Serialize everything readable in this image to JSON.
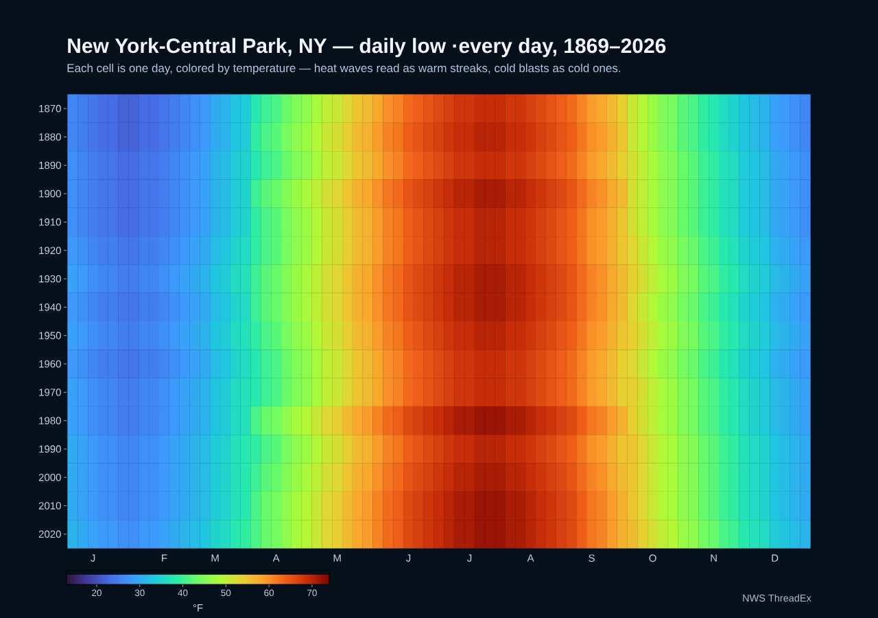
{
  "chart_data": {
    "type": "heatmap",
    "title": "New York-Central Park, NY — daily low ·every day, 1869–2026",
    "subtitle": "Each cell is one day, colored by temperature — heat waves read as warm streaks, cold blasts as cold ones.",
    "categories": [
      null,
      null,
      "J",
      null,
      null,
      null,
      null,
      null,
      null,
      "F",
      null,
      null,
      null,
      null,
      "M",
      null,
      null,
      null,
      null,
      null,
      "A",
      null,
      null,
      null,
      null,
      null,
      "M",
      null,
      null,
      null,
      null,
      null,
      null,
      "J",
      null,
      null,
      null,
      null,
      null,
      "J",
      null,
      null,
      null,
      null,
      null,
      "A",
      null,
      null,
      null,
      null,
      null,
      "S",
      null,
      null,
      null,
      null,
      null,
      "O",
      null,
      null,
      null,
      null,
      null,
      "N",
      null,
      null,
      null,
      null,
      null,
      "D",
      null,
      null,
      null
    ],
    "y_categories": [
      "1870",
      "1880",
      "1890",
      "1900",
      "1910",
      "1920",
      "1930",
      "1940",
      "1950",
      "1960",
      "1970",
      "1980",
      "1990",
      "2000",
      "2010",
      "2020"
    ],
    "cells": [
      [
        26,
        25,
        24,
        23,
        23,
        22,
        22,
        23,
        23,
        24,
        25,
        26,
        27,
        28,
        30,
        31,
        33,
        34,
        38,
        40,
        41,
        43,
        45,
        46,
        48,
        50,
        51,
        53,
        55,
        56,
        58,
        60,
        61,
        63,
        64,
        65,
        66,
        67,
        68,
        68,
        69,
        69,
        69,
        68,
        68,
        67,
        66,
        65,
        64,
        63,
        61,
        59,
        58,
        56,
        54,
        51,
        49,
        47,
        45,
        44,
        42,
        41,
        39,
        38,
        36,
        35,
        33,
        32,
        31,
        29,
        28,
        27,
        26
      ],
      [
        26,
        25,
        24,
        23,
        23,
        22,
        22,
        23,
        23,
        24,
        25,
        26,
        27,
        28,
        30,
        31,
        33,
        34,
        39,
        41,
        42,
        44,
        46,
        47,
        49,
        51,
        52,
        54,
        56,
        57,
        59,
        61,
        62,
        64,
        65,
        66,
        67,
        68,
        69,
        69,
        70,
        70,
        70,
        69,
        69,
        68,
        67,
        66,
        65,
        64,
        62,
        60,
        59,
        57,
        55,
        51,
        49,
        47,
        45,
        44,
        42,
        41,
        39,
        38,
        36,
        35,
        33,
        32,
        31,
        29,
        28,
        27,
        26
      ],
      [
        27,
        26,
        25,
        24,
        24,
        23,
        23,
        24,
        24,
        25,
        26,
        27,
        28,
        29,
        31,
        32,
        34,
        35,
        38,
        40,
        41,
        43,
        45,
        46,
        48,
        50,
        51,
        53,
        55,
        56,
        58,
        60,
        61,
        63,
        64,
        65,
        66,
        67,
        68,
        68,
        69,
        69,
        69,
        68,
        68,
        67,
        66,
        65,
        64,
        63,
        61,
        59,
        58,
        56,
        54,
        52,
        50,
        48,
        46,
        45,
        43,
        42,
        40,
        39,
        37,
        36,
        34,
        33,
        32,
        30,
        29,
        28,
        27
      ],
      [
        27,
        26,
        25,
        24,
        24,
        23,
        23,
        24,
        24,
        25,
        26,
        27,
        28,
        29,
        31,
        32,
        34,
        35,
        40,
        42,
        43,
        45,
        47,
        48,
        50,
        52,
        53,
        55,
        57,
        58,
        60,
        62,
        63,
        65,
        66,
        67,
        68,
        69,
        70,
        70,
        71,
        71,
        71,
        70,
        70,
        69,
        68,
        67,
        66,
        65,
        63,
        61,
        60,
        58,
        56,
        52,
        50,
        48,
        46,
        45,
        43,
        42,
        40,
        39,
        37,
        36,
        34,
        33,
        32,
        30,
        29,
        28,
        27
      ],
      [
        27,
        26,
        25,
        24,
        24,
        23,
        23,
        24,
        24,
        25,
        26,
        27,
        28,
        29,
        31,
        32,
        34,
        35,
        39,
        41,
        42,
        44,
        46,
        47,
        49,
        51,
        52,
        54,
        56,
        57,
        59,
        61,
        62,
        64,
        65,
        66,
        67,
        68,
        69,
        69,
        70,
        70,
        70,
        69,
        69,
        68,
        67,
        66,
        65,
        64,
        62,
        60,
        59,
        57,
        55,
        52,
        50,
        48,
        46,
        45,
        43,
        42,
        40,
        39,
        37,
        36,
        34,
        33,
        32,
        30,
        29,
        28,
        27
      ],
      [
        28,
        27,
        26,
        25,
        25,
        24,
        24,
        25,
        25,
        26,
        27,
        28,
        29,
        30,
        32,
        33,
        35,
        36,
        39,
        41,
        42,
        44,
        46,
        47,
        49,
        51,
        52,
        54,
        56,
        57,
        59,
        61,
        62,
        64,
        65,
        66,
        67,
        68,
        69,
        69,
        70,
        70,
        70,
        69,
        69,
        68,
        67,
        66,
        65,
        64,
        62,
        60,
        59,
        57,
        55,
        53,
        51,
        49,
        47,
        46,
        44,
        43,
        41,
        40,
        38,
        37,
        35,
        34,
        33,
        31,
        30,
        29,
        28
      ],
      [
        29,
        28,
        27,
        26,
        26,
        25,
        25,
        26,
        26,
        27,
        28,
        29,
        30,
        31,
        33,
        34,
        36,
        37,
        40,
        42,
        43,
        45,
        47,
        48,
        50,
        52,
        53,
        55,
        57,
        58,
        60,
        62,
        63,
        65,
        66,
        67,
        68,
        69,
        70,
        70,
        71,
        71,
        71,
        70,
        70,
        69,
        68,
        67,
        66,
        65,
        63,
        61,
        60,
        58,
        56,
        54,
        52,
        50,
        48,
        47,
        45,
        44,
        42,
        41,
        39,
        38,
        36,
        35,
        34,
        32,
        31,
        30,
        29
      ],
      [
        28,
        27,
        26,
        25,
        25,
        24,
        24,
        25,
        25,
        26,
        27,
        28,
        29,
        30,
        32,
        33,
        35,
        36,
        40,
        42,
        43,
        45,
        47,
        48,
        50,
        52,
        53,
        55,
        57,
        58,
        60,
        62,
        63,
        65,
        66,
        67,
        68,
        69,
        70,
        70,
        71,
        71,
        71,
        70,
        70,
        69,
        68,
        67,
        66,
        65,
        63,
        61,
        60,
        58,
        56,
        53,
        51,
        49,
        47,
        46,
        44,
        43,
        41,
        40,
        38,
        37,
        35,
        34,
        33,
        31,
        30,
        29,
        28
      ],
      [
        29,
        28,
        27,
        26,
        26,
        25,
        25,
        26,
        26,
        27,
        28,
        29,
        30,
        31,
        33,
        34,
        36,
        37,
        39,
        41,
        42,
        44,
        46,
        47,
        49,
        51,
        52,
        54,
        56,
        57,
        59,
        61,
        62,
        64,
        65,
        66,
        67,
        68,
        69,
        69,
        70,
        70,
        70,
        69,
        69,
        68,
        67,
        66,
        65,
        64,
        62,
        60,
        59,
        57,
        55,
        54,
        52,
        50,
        48,
        47,
        45,
        44,
        42,
        41,
        39,
        38,
        36,
        35,
        34,
        32,
        31,
        30,
        29
      ],
      [
        28,
        27,
        26,
        25,
        25,
        24,
        24,
        25,
        25,
        26,
        27,
        28,
        29,
        30,
        32,
        33,
        35,
        36,
        38,
        40,
        41,
        43,
        45,
        46,
        48,
        50,
        51,
        53,
        55,
        56,
        58,
        60,
        61,
        63,
        64,
        65,
        66,
        67,
        68,
        68,
        69,
        69,
        69,
        68,
        68,
        67,
        66,
        65,
        64,
        63,
        61,
        59,
        58,
        56,
        54,
        53,
        51,
        49,
        47,
        46,
        44,
        43,
        41,
        40,
        38,
        37,
        35,
        34,
        33,
        31,
        30,
        29,
        28
      ],
      [
        29,
        28,
        27,
        26,
        26,
        25,
        25,
        26,
        26,
        27,
        28,
        29,
        30,
        31,
        33,
        34,
        36,
        37,
        38,
        40,
        41,
        43,
        45,
        46,
        48,
        50,
        51,
        53,
        55,
        56,
        58,
        60,
        61,
        63,
        64,
        65,
        66,
        67,
        68,
        68,
        69,
        69,
        69,
        68,
        68,
        67,
        66,
        65,
        64,
        63,
        61,
        59,
        58,
        56,
        54,
        54,
        52,
        50,
        48,
        47,
        45,
        44,
        42,
        41,
        39,
        38,
        36,
        35,
        34,
        32,
        31,
        30,
        29
      ],
      [
        29,
        28,
        27,
        26,
        26,
        25,
        25,
        26,
        26,
        27,
        28,
        29,
        30,
        31,
        33,
        34,
        36,
        37,
        41,
        43,
        44,
        46,
        48,
        49,
        51,
        53,
        54,
        56,
        58,
        59,
        61,
        63,
        64,
        66,
        67,
        68,
        69,
        70,
        71,
        71,
        72,
        72,
        72,
        71,
        71,
        70,
        69,
        68,
        67,
        66,
        64,
        62,
        61,
        59,
        57,
        54,
        52,
        50,
        48,
        47,
        45,
        44,
        42,
        41,
        39,
        38,
        36,
        35,
        34,
        32,
        31,
        30,
        29
      ],
      [
        30,
        29,
        28,
        27,
        27,
        26,
        26,
        27,
        27,
        28,
        29,
        30,
        31,
        32,
        34,
        35,
        37,
        38,
        39,
        41,
        42,
        44,
        46,
        47,
        49,
        51,
        52,
        54,
        56,
        57,
        59,
        61,
        62,
        64,
        65,
        66,
        67,
        68,
        69,
        69,
        70,
        70,
        70,
        69,
        69,
        68,
        67,
        66,
        65,
        64,
        62,
        60,
        59,
        57,
        55,
        55,
        53,
        51,
        49,
        48,
        46,
        45,
        43,
        42,
        40,
        39,
        37,
        36,
        35,
        33,
        32,
        31,
        30
      ],
      [
        30,
        29,
        28,
        27,
        27,
        26,
        26,
        27,
        27,
        28,
        29,
        30,
        31,
        32,
        34,
        35,
        37,
        38,
        40,
        42,
        43,
        45,
        47,
        48,
        50,
        52,
        53,
        55,
        57,
        58,
        60,
        62,
        63,
        65,
        66,
        67,
        68,
        69,
        70,
        70,
        71,
        71,
        71,
        70,
        70,
        69,
        68,
        67,
        66,
        65,
        63,
        61,
        60,
        58,
        56,
        55,
        53,
        51,
        49,
        48,
        46,
        45,
        43,
        42,
        40,
        39,
        37,
        36,
        35,
        33,
        32,
        31,
        30
      ],
      [
        30,
        29,
        28,
        27,
        27,
        26,
        26,
        27,
        27,
        28,
        29,
        30,
        31,
        32,
        34,
        35,
        37,
        38,
        41,
        43,
        44,
        46,
        48,
        49,
        51,
        53,
        54,
        56,
        58,
        59,
        61,
        63,
        64,
        66,
        67,
        68,
        69,
        70,
        71,
        71,
        72,
        72,
        72,
        71,
        71,
        70,
        69,
        68,
        67,
        66,
        64,
        62,
        61,
        59,
        57,
        55,
        53,
        51,
        49,
        48,
        46,
        45,
        43,
        42,
        40,
        39,
        37,
        36,
        35,
        33,
        32,
        31,
        30
      ],
      [
        31,
        30,
        29,
        28,
        28,
        27,
        27,
        28,
        28,
        29,
        30,
        31,
        32,
        33,
        35,
        36,
        38,
        39,
        41,
        43,
        44,
        46,
        48,
        49,
        51,
        53,
        54,
        56,
        58,
        59,
        61,
        63,
        64,
        66,
        67,
        68,
        69,
        70,
        71,
        71,
        72,
        72,
        72,
        71,
        71,
        70,
        69,
        68,
        67,
        66,
        64,
        62,
        61,
        59,
        57,
        56,
        54,
        52,
        50,
        49,
        47,
        46,
        44,
        43,
        41,
        40,
        38,
        37,
        36,
        34,
        33,
        32,
        31
      ]
    ],
    "clim": [
      13,
      74
    ],
    "cticks": [
      20,
      30,
      40,
      50,
      60,
      70
    ],
    "clabel": "°F",
    "annotations": [
      "NWS ThreadEx"
    ]
  }
}
